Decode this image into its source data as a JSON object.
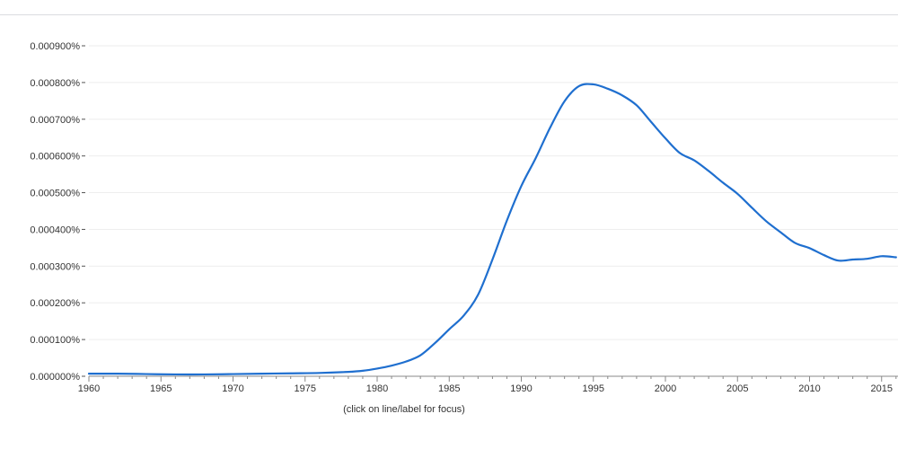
{
  "chart_data": {
    "type": "line",
    "title": "",
    "xlabel": "",
    "ylabel": "",
    "xlim": [
      1960,
      2016
    ],
    "ylim": [
      0,
      0.0009
    ],
    "grid": true,
    "yticks": [
      "0.000000%",
      "0.000100%",
      "0.000200%",
      "0.000300%",
      "0.000400%",
      "0.000500%",
      "0.000600%",
      "0.000700%",
      "0.000800%",
      "0.000900%"
    ],
    "ytick_values": [
      0,
      0.0001,
      0.0002,
      0.0003,
      0.0004,
      0.0005,
      0.0006,
      0.0007,
      0.0008,
      0.0009
    ],
    "xticks": [
      "1960",
      "1965",
      "1970",
      "1975",
      "1980",
      "1985",
      "1990",
      "1995",
      "2000",
      "2005",
      "2010",
      "2015"
    ],
    "xtick_values": [
      1960,
      1965,
      1970,
      1975,
      1980,
      1985,
      1990,
      1995,
      2000,
      2005,
      2010,
      2015
    ],
    "series": [
      {
        "color": "#1f6fcf",
        "x": [
          1960,
          1962,
          1964,
          1966,
          1968,
          1970,
          1972,
          1974,
          1976,
          1978,
          1979,
          1980,
          1981,
          1982,
          1983,
          1984,
          1985,
          1986,
          1987,
          1988,
          1989,
          1990,
          1991,
          1992,
          1993,
          1994,
          1995,
          1996,
          1997,
          1998,
          1999,
          2000,
          2001,
          2002,
          2003,
          2004,
          2005,
          2006,
          2007,
          2008,
          2009,
          2010,
          2011,
          2012,
          2013,
          2014,
          2015,
          2016
        ],
        "y": [
          7e-06,
          7e-06,
          6e-06,
          5e-06,
          5e-06,
          6e-06,
          7e-06,
          8e-06,
          9e-06,
          1.2e-05,
          1.5e-05,
          2.1e-05,
          2.9e-05,
          4e-05,
          5.7e-05,
          9e-05,
          0.000128,
          0.000165,
          0.000222,
          0.000318,
          0.000424,
          0.000518,
          0.000594,
          0.000677,
          0.000749,
          0.00079,
          0.000795,
          0.000783,
          0.000765,
          0.000738,
          0.000693,
          0.000648,
          0.000608,
          0.000588,
          0.000559,
          0.000527,
          0.000497,
          0.000459,
          0.000422,
          0.000392,
          0.000363,
          0.000349,
          0.00033,
          0.000315,
          0.000318,
          0.00032,
          0.000327,
          0.000324
        ]
      }
    ]
  },
  "footer": {
    "hint": "(click on line/label for focus)"
  }
}
